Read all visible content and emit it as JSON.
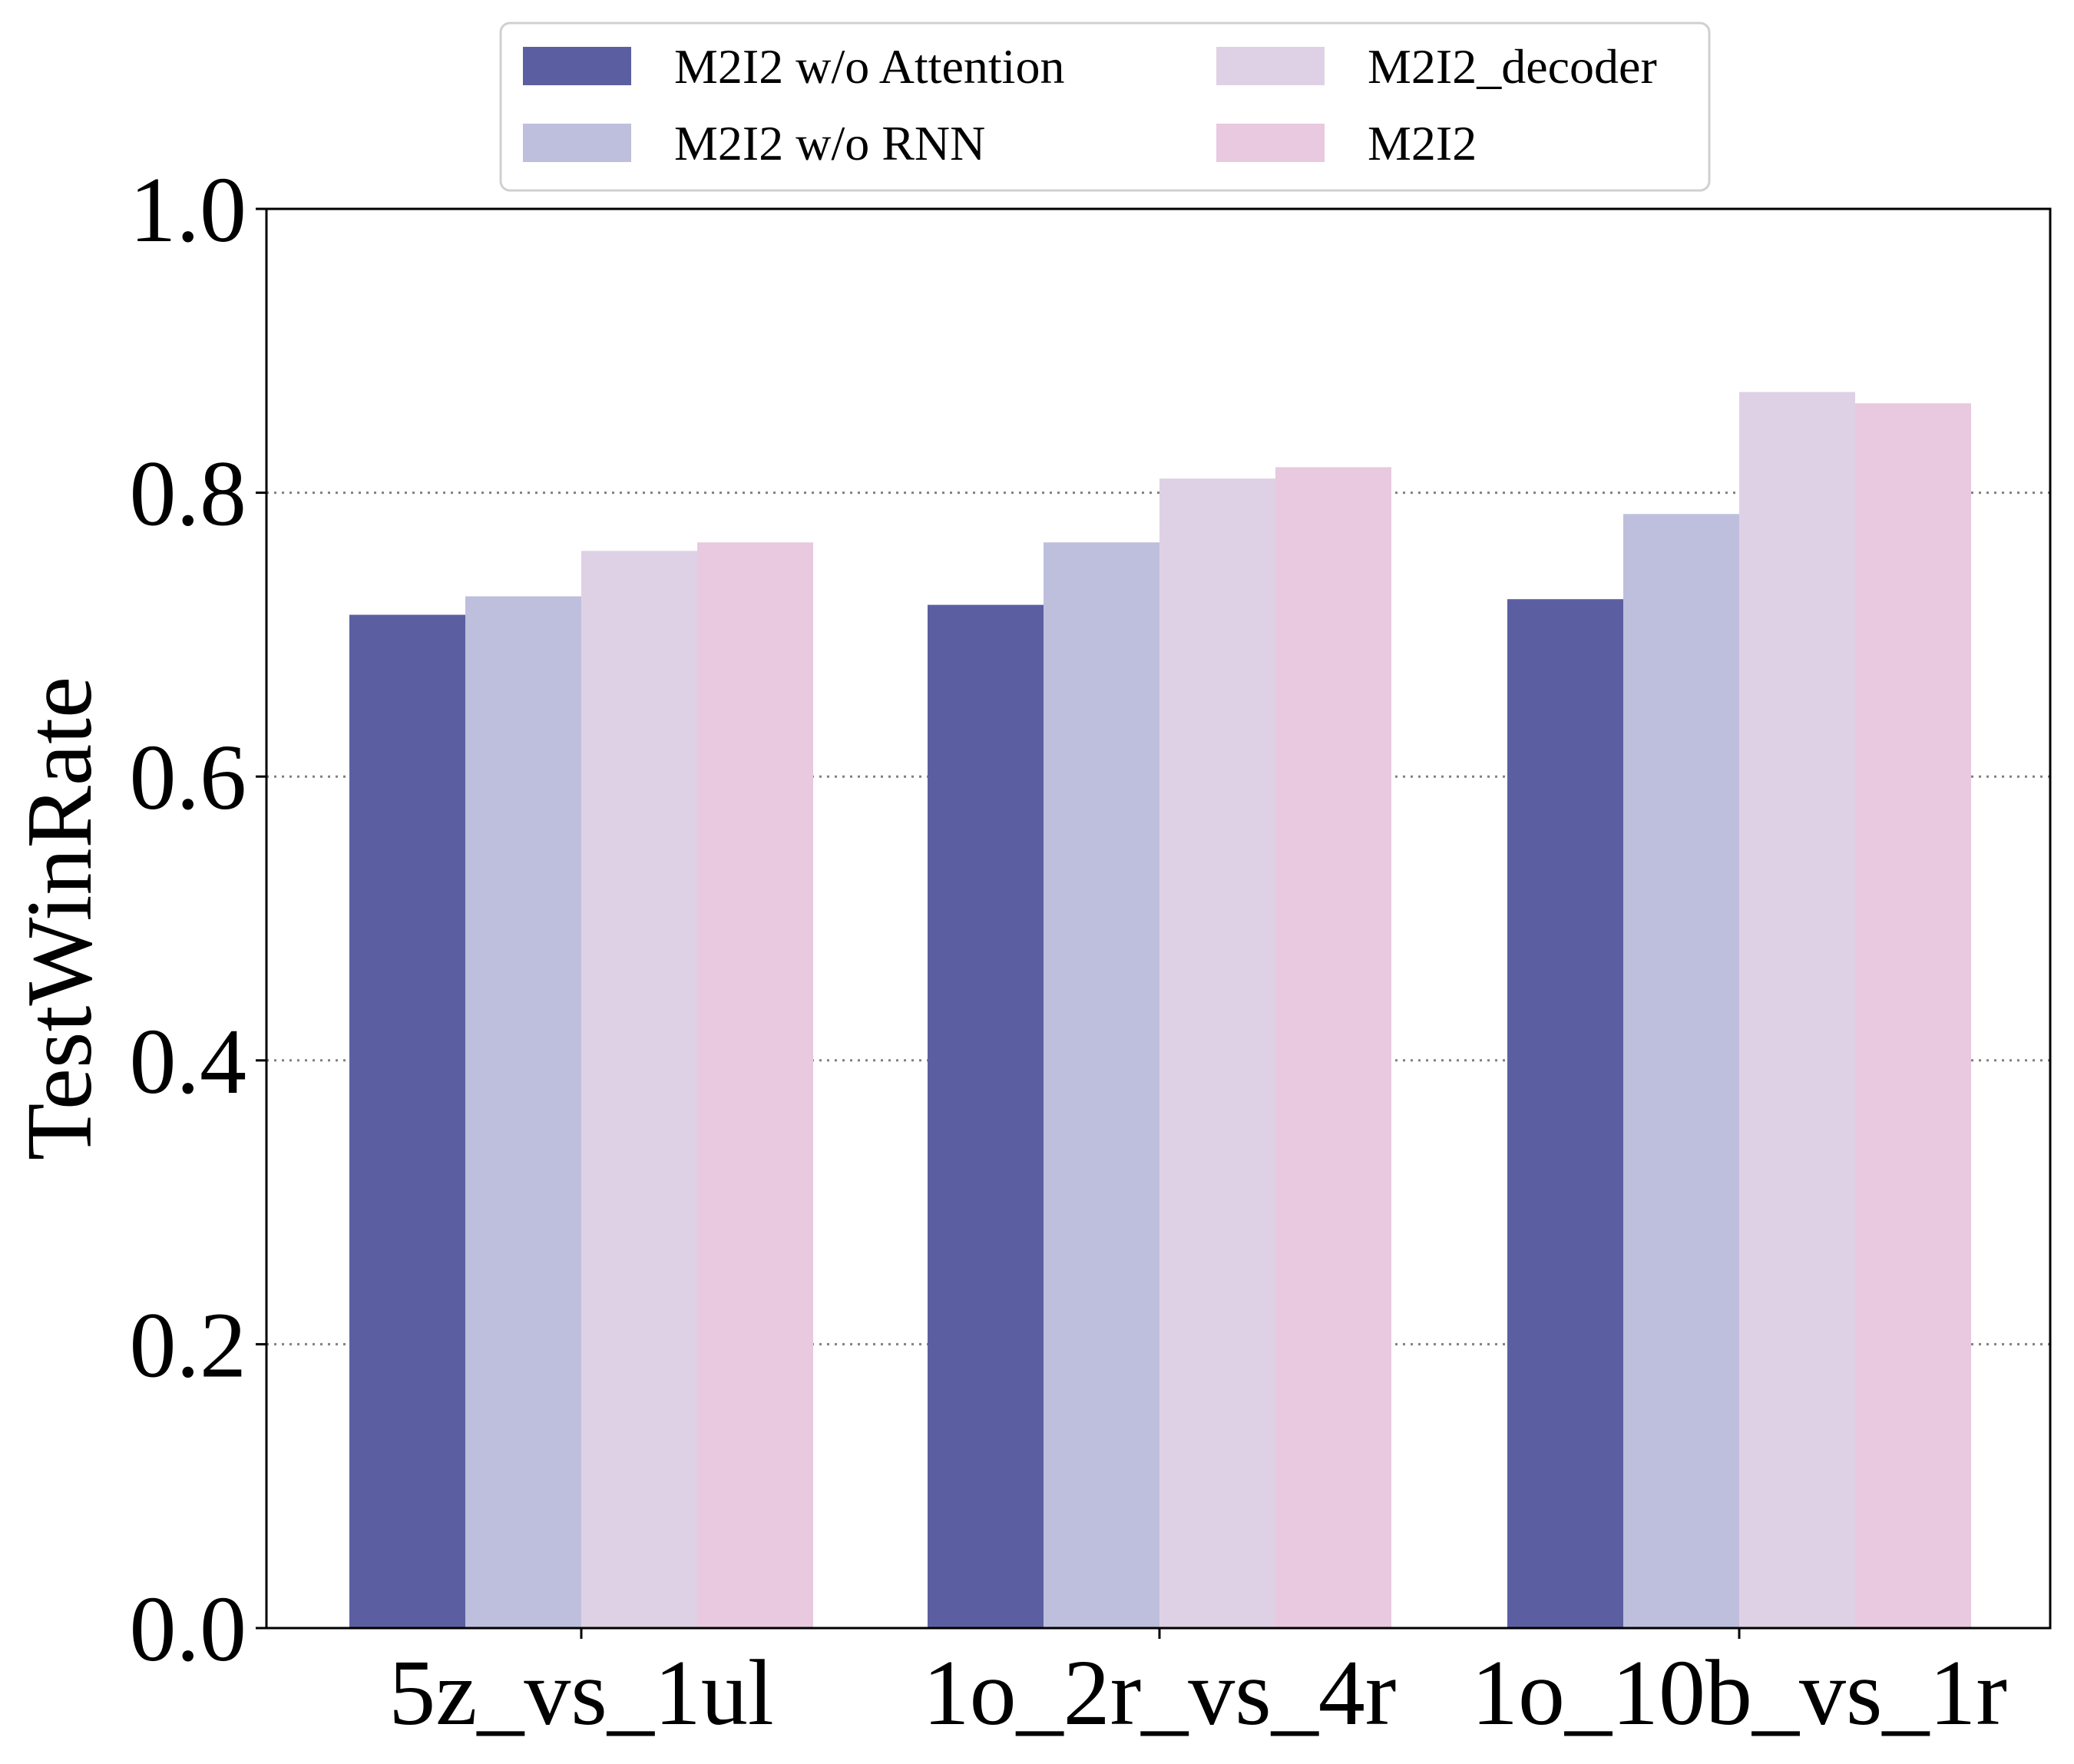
{
  "chart_data": {
    "type": "bar",
    "categories": [
      "5z_vs_1ul",
      "1o_2r_vs_4r",
      "1o_10b_vs_1r"
    ],
    "series": [
      {
        "name": "M2I2 w/o Attention",
        "color": "#5b5fa2",
        "values": [
          0.714,
          0.721,
          0.725
        ]
      },
      {
        "name": "M2I2 w/o RNN",
        "color": "#bebfdd",
        "values": [
          0.727,
          0.765,
          0.785
        ]
      },
      {
        "name": "M2I2_decoder",
        "color": "#dfd1e5",
        "values": [
          0.759,
          0.81,
          0.871
        ]
      },
      {
        "name": "M2I2",
        "color": "#e8c9df",
        "values": [
          0.765,
          0.818,
          0.863
        ]
      }
    ],
    "title": "",
    "xlabel": "",
    "ylabel": "TestWinRate",
    "ylim": [
      0.0,
      1.0
    ],
    "yticks": [
      "0.0",
      "0.2",
      "0.4",
      "0.6",
      "0.8",
      "1.0"
    ],
    "grid": "y-dotted",
    "legend_placement": "top-center"
  }
}
